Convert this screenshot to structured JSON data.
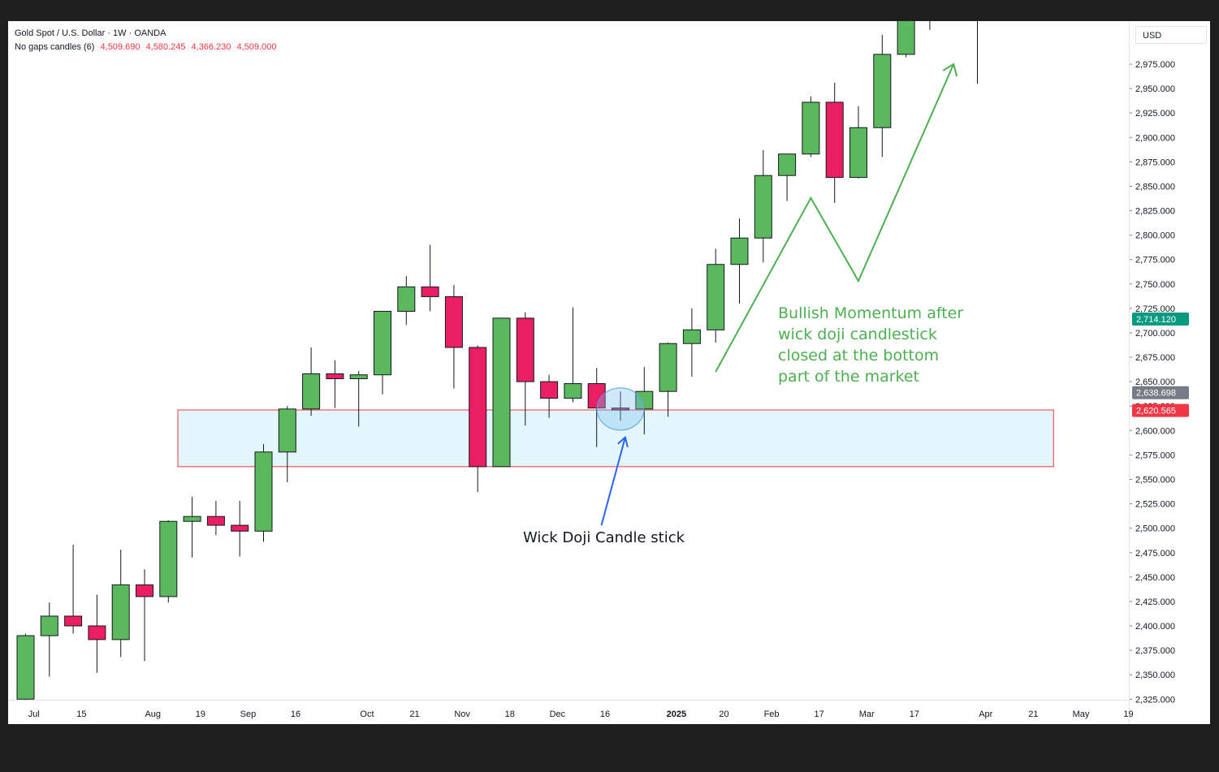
{
  "legend": {
    "symbol": "Gold Spot / U.S. Dollar · 1W · OANDA",
    "indicator_name": "No gaps candles (6)",
    "indicator_values": [
      "4,509.690",
      "4,580.245",
      "4,366.230",
      "4,509.000"
    ]
  },
  "currency": "USD",
  "colors": {
    "up": "#5cb85c",
    "down": "#e91e63",
    "zone_fill": "#e3f6fc",
    "zone_border": "#f23645",
    "annotation_green": "#4caf50",
    "arrow_blue": "#2962ff",
    "tag_green": "#089981",
    "tag_gray": "#787b86",
    "tag_red": "#f23645"
  },
  "chart_data": {
    "type": "candlestick",
    "y_range": [
      2325,
      3040
    ],
    "y_ticks": [
      "2,325.000",
      "2,350.000",
      "2,375.000",
      "2,400.000",
      "2,425.000",
      "2,450.000",
      "2,475.000",
      "2,500.000",
      "2,525.000",
      "2,550.000",
      "2,575.000",
      "2,600.000",
      "2,625.000",
      "2,650.000",
      "2,675.000",
      "2,700.000",
      "2,725.000",
      "2,750.000",
      "2,775.000",
      "2,800.000",
      "2,825.000",
      "2,850.000",
      "2,875.000",
      "2,900.000",
      "2,925.000",
      "2,950.000",
      "2,975.000"
    ],
    "x_labels": [
      {
        "text": "Jul",
        "week": 0.35,
        "bold": false
      },
      {
        "text": "15",
        "week": 2.35,
        "bold": false
      },
      {
        "text": "Aug",
        "week": 5.35,
        "bold": false
      },
      {
        "text": "19",
        "week": 7.35,
        "bold": false
      },
      {
        "text": "Sep",
        "week": 9.35,
        "bold": false
      },
      {
        "text": "16",
        "week": 11.35,
        "bold": false
      },
      {
        "text": "Oct",
        "week": 14.35,
        "bold": false
      },
      {
        "text": "21",
        "week": 16.35,
        "bold": false
      },
      {
        "text": "Nov",
        "week": 18.35,
        "bold": false
      },
      {
        "text": "18",
        "week": 20.35,
        "bold": false
      },
      {
        "text": "Dec",
        "week": 22.35,
        "bold": false
      },
      {
        "text": "16",
        "week": 24.35,
        "bold": false
      },
      {
        "text": "2025",
        "week": 27.35,
        "bold": true
      },
      {
        "text": "20",
        "week": 29.35,
        "bold": false
      },
      {
        "text": "Feb",
        "week": 31.35,
        "bold": false
      },
      {
        "text": "17",
        "week": 33.35,
        "bold": false
      },
      {
        "text": "Mar",
        "week": 35.35,
        "bold": false
      },
      {
        "text": "17",
        "week": 37.35,
        "bold": false
      },
      {
        "text": "Apr",
        "week": 40.35,
        "bold": false
      },
      {
        "text": "21",
        "week": 42.35,
        "bold": false
      },
      {
        "text": "May",
        "week": 44.35,
        "bold": false
      },
      {
        "text": "19",
        "week": 46.35,
        "bold": false
      }
    ],
    "candles": [
      {
        "o": 2325,
        "h": 2392,
        "l": 2322,
        "c": 2390
      },
      {
        "o": 2390,
        "h": 2424,
        "l": 2348,
        "c": 2410
      },
      {
        "o": 2410,
        "h": 2483,
        "l": 2392,
        "c": 2400
      },
      {
        "o": 2400,
        "h": 2432,
        "l": 2352,
        "c": 2386
      },
      {
        "o": 2386,
        "h": 2478,
        "l": 2368,
        "c": 2442
      },
      {
        "o": 2442,
        "h": 2458,
        "l": 2364,
        "c": 2430
      },
      {
        "o": 2430,
        "h": 2508,
        "l": 2424,
        "c": 2507
      },
      {
        "o": 2507,
        "h": 2532,
        "l": 2470,
        "c": 2512
      },
      {
        "o": 2512,
        "h": 2528,
        "l": 2493,
        "c": 2503
      },
      {
        "o": 2503,
        "h": 2528,
        "l": 2471,
        "c": 2497
      },
      {
        "o": 2497,
        "h": 2586,
        "l": 2486,
        "c": 2578
      },
      {
        "o": 2578,
        "h": 2625,
        "l": 2547,
        "c": 2622
      },
      {
        "o": 2622,
        "h": 2685,
        "l": 2615,
        "c": 2658
      },
      {
        "o": 2658,
        "h": 2672,
        "l": 2623,
        "c": 2653
      },
      {
        "o": 2653,
        "h": 2661,
        "l": 2604,
        "c": 2657
      },
      {
        "o": 2657,
        "h": 2722,
        "l": 2637,
        "c": 2722
      },
      {
        "o": 2722,
        "h": 2758,
        "l": 2708,
        "c": 2747
      },
      {
        "o": 2747,
        "h": 2790,
        "l": 2722,
        "c": 2737
      },
      {
        "o": 2737,
        "h": 2749,
        "l": 2643,
        "c": 2685
      },
      {
        "o": 2685,
        "h": 2687,
        "l": 2537,
        "c": 2563
      },
      {
        "o": 2563,
        "h": 2715,
        "l": 2563,
        "c": 2715
      },
      {
        "o": 2715,
        "h": 2721,
        "l": 2605,
        "c": 2650
      },
      {
        "o": 2650,
        "h": 2657,
        "l": 2613,
        "c": 2633
      },
      {
        "o": 2633,
        "h": 2726,
        "l": 2629,
        "c": 2648
      },
      {
        "o": 2648,
        "h": 2664,
        "l": 2583,
        "c": 2623
      },
      {
        "o": 2623,
        "h": 2640,
        "l": 2610,
        "c": 2621
      },
      {
        "o": 2622,
        "h": 2665,
        "l": 2596,
        "c": 2640
      },
      {
        "o": 2640,
        "h": 2690,
        "l": 2614,
        "c": 2689
      },
      {
        "o": 2689,
        "h": 2725,
        "l": 2655,
        "c": 2703
      },
      {
        "o": 2703,
        "h": 2786,
        "l": 2690,
        "c": 2770
      },
      {
        "o": 2770,
        "h": 2817,
        "l": 2730,
        "c": 2797
      },
      {
        "o": 2797,
        "h": 2887,
        "l": 2772,
        "c": 2861
      },
      {
        "o": 2861,
        "h": 2883,
        "l": 2835,
        "c": 2883
      },
      {
        "o": 2883,
        "h": 2942,
        "l": 2880,
        "c": 2936
      },
      {
        "o": 2936,
        "h": 2956,
        "l": 2833,
        "c": 2859
      },
      {
        "o": 2859,
        "h": 2932,
        "l": 2858,
        "c": 2910
      },
      {
        "o": 2910,
        "h": 3005,
        "l": 2880,
        "c": 2985
      },
      {
        "o": 2985,
        "h": 3050,
        "l": 2982,
        "c": 3045
      },
      {
        "o": 3045,
        "h": 3050,
        "l": 3010,
        "c": 3045
      },
      {
        "o": 3045,
        "h": 3050,
        "l": 3020,
        "c": 3045
      },
      {
        "o": 3045,
        "h": 3050,
        "l": 2955,
        "c": 3045
      }
    ],
    "price_tags": [
      {
        "label": "2,714.120",
        "value": 2714.12,
        "color": "#089981"
      },
      {
        "label": "2,638.698",
        "value": 2638.698,
        "color": "#787b86"
      },
      {
        "label": "2,620.565",
        "value": 2620.565,
        "color": "#f23645"
      }
    ],
    "support_zone": {
      "start_week": 6.4,
      "end_week": 43.2,
      "top": 2621,
      "bottom": 2563
    },
    "highlight_circle": {
      "week": 25,
      "value": 2622
    },
    "zigzag_path": [
      {
        "week": 29.0,
        "value": 2660
      },
      {
        "week": 33.0,
        "value": 2838
      },
      {
        "week": 35.0,
        "value": 2753
      },
      {
        "week": 39.0,
        "value": 2975
      }
    ],
    "doji_arrow": {
      "from": {
        "week": 24.2,
        "value": 2503
      },
      "to": {
        "week": 25.2,
        "value": 2593
      }
    }
  },
  "annotations": {
    "bullish_lines": [
      "Bullish Momentum after",
      "wick doji candlestick",
      "closed at the bottom",
      "part of the market"
    ],
    "doji_label": "Wick Doji Candle stick"
  }
}
